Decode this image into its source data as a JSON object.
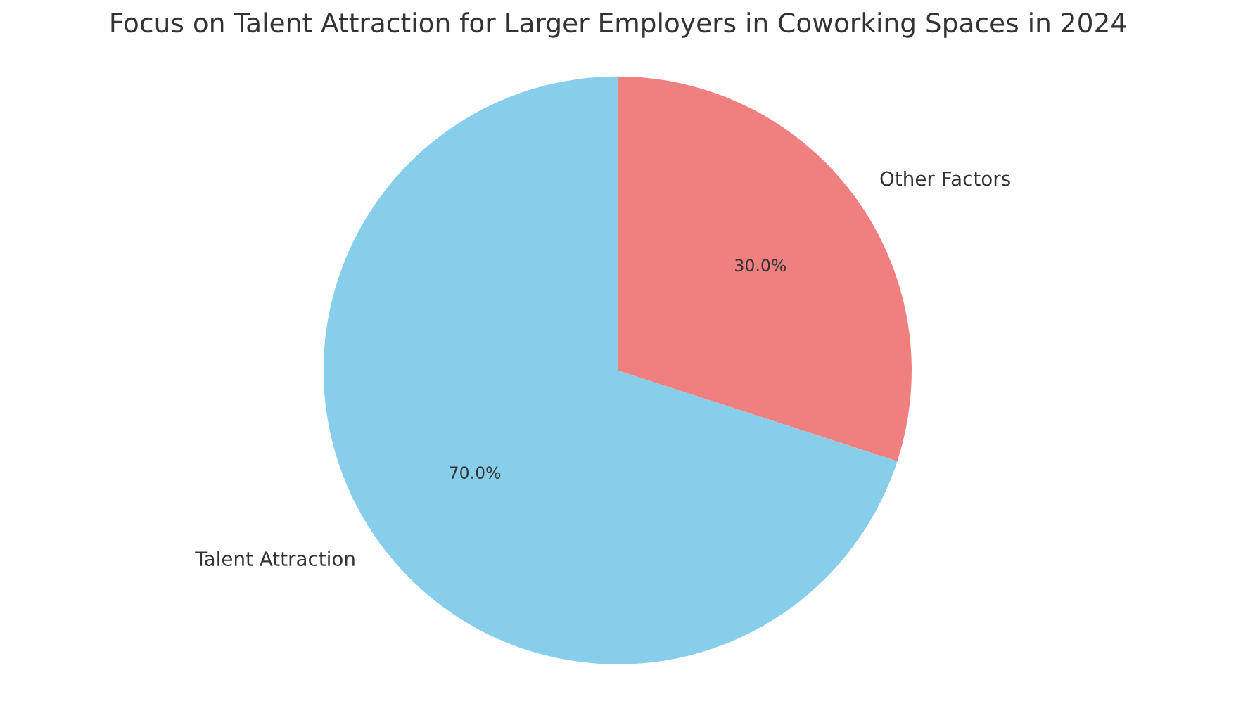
{
  "chart_data": {
    "type": "pie",
    "title": "Focus on Talent Attraction for Larger Employers in Coworking Spaces in 2024",
    "categories": [
      "Talent Attraction",
      "Other Factors"
    ],
    "values": [
      70,
      30
    ],
    "colors": [
      "#87ceeb",
      "#f08080"
    ],
    "value_labels": [
      "70.0%",
      "30.0%"
    ]
  }
}
